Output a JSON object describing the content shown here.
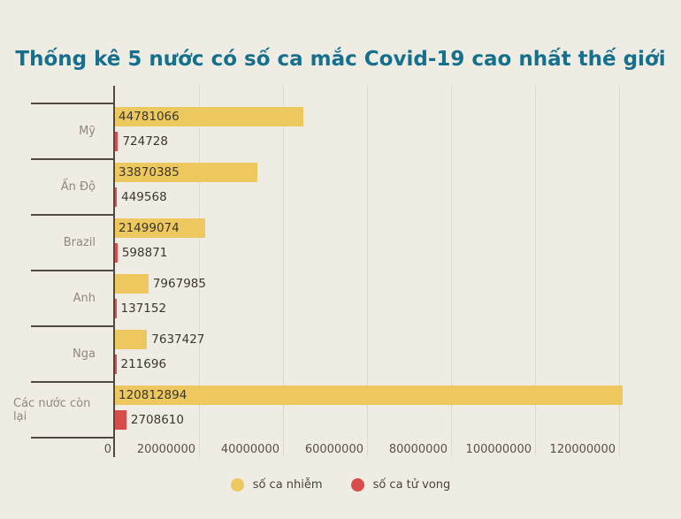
{
  "title": "Thống kê 5 nước có số ca mắc Covid-19 cao nhất thế giới",
  "colors": {
    "background": "#efece3",
    "title": "#15708e",
    "infections": "#ecc85e",
    "deaths": "#d84c4c",
    "gridline": "#dcd9cf",
    "axis": "#4f4b44",
    "value_label": "#3a372e",
    "category_label": "#8d897d",
    "tick_label": "#56524a",
    "legend_label": "#46433b"
  },
  "chart_data": {
    "type": "bar",
    "orientation": "horizontal",
    "title": "Thống kê 5 nước có số ca mắc Covid-19 cao nhất thế giới",
    "categories": [
      "Mỹ",
      "Ấn Độ",
      "Brazil",
      "Anh",
      "Nga",
      "Các nước còn lại"
    ],
    "series": [
      {
        "name": "số ca nhiễm",
        "color": "#ecc85e",
        "values": [
          44781066,
          33870385,
          21499074,
          7967985,
          7637427,
          120812894
        ]
      },
      {
        "name": "số ca tử vong",
        "color": "#d84c4c",
        "values": [
          724728,
          449568,
          598871,
          137152,
          211696,
          2708610
        ]
      }
    ],
    "x_ticks": [
      0,
      20000000,
      40000000,
      60000000,
      80000000,
      100000000,
      120000000
    ],
    "x_tick_labels": [
      "0",
      "20000000",
      "40000000",
      "60000000",
      "80000000",
      "100000000",
      "120000000"
    ],
    "xlim": [
      0,
      134000000
    ],
    "grid": true,
    "data_labels": true,
    "legend_position": "bottom"
  }
}
